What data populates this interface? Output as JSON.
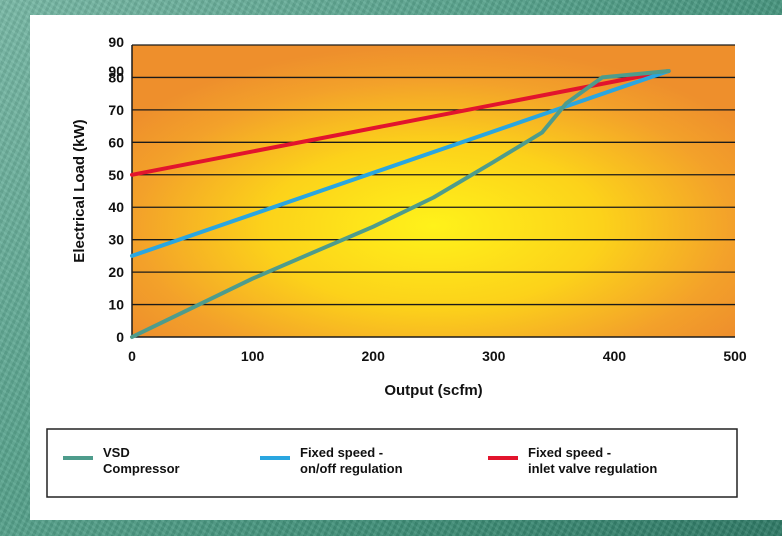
{
  "chart_data": {
    "type": "line",
    "xlabel": "Output (scfm)",
    "ylabel": "Electrical Load (kW)",
    "xlim": [
      0,
      500
    ],
    "ylim": [
      0,
      90
    ],
    "x_ticks": [
      "0",
      "100",
      "200",
      "300",
      "400",
      "500"
    ],
    "y_ticks": [
      "0",
      "10",
      "20",
      "30",
      "40",
      "50",
      "60",
      "70",
      "80",
      "90",
      "90"
    ],
    "grid": "horizontal",
    "legend_position": "bottom",
    "series": [
      {
        "name": "VSD\nCompressor",
        "color": "#4e9c8c",
        "points": [
          [
            0,
            0
          ],
          [
            50,
            9
          ],
          [
            100,
            18
          ],
          [
            150,
            26
          ],
          [
            200,
            34
          ],
          [
            250,
            43
          ],
          [
            300,
            54
          ],
          [
            340,
            63
          ],
          [
            360,
            72
          ],
          [
            390,
            80
          ],
          [
            445,
            82
          ]
        ]
      },
      {
        "name": "Fixed speed -\non/off regulation",
        "color": "#2aa6e0",
        "points": [
          [
            0,
            25
          ],
          [
            445,
            82
          ]
        ]
      },
      {
        "name": "Fixed speed -\ninlet valve regulation",
        "color": "#e2142d",
        "points": [
          [
            0,
            50
          ],
          [
            445,
            82
          ]
        ]
      }
    ]
  }
}
